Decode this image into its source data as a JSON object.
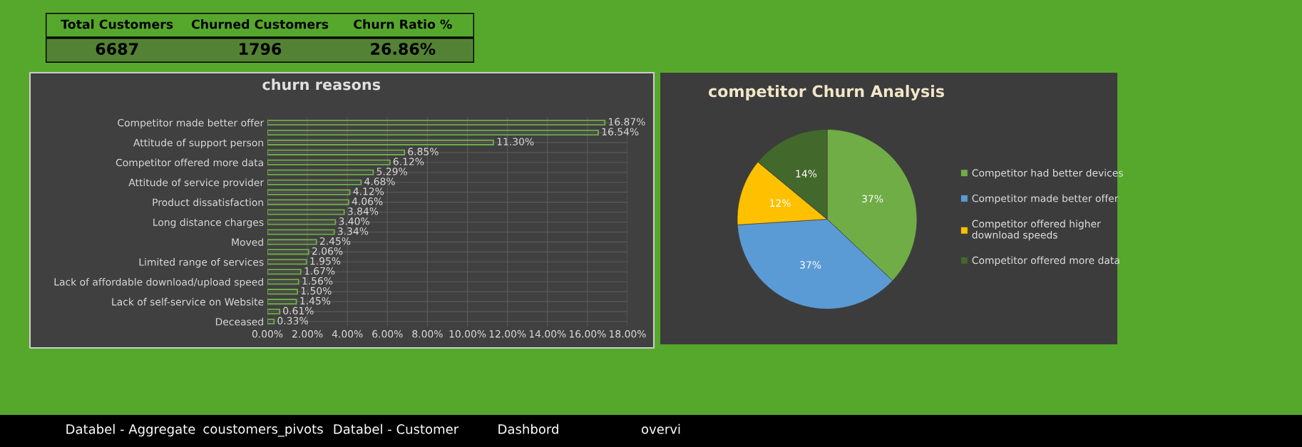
{
  "chart_data": [
    {
      "type": "other",
      "categories": [
        "Total Customers",
        "Churned Customers",
        "Churn Ratio %"
      ],
      "value_labels": [
        "6687",
        "1796",
        "26.86%"
      ]
    },
    {
      "type": "bar",
      "title": "churn reasons",
      "orientation": "horizontal",
      "categories": [
        "Competitor made better offer",
        null,
        "Attitude of support person",
        null,
        "Competitor offered more data",
        null,
        "Attitude of service provider",
        null,
        "Product dissatisfaction",
        null,
        "Long distance charges",
        null,
        "Moved",
        null,
        "Limited range of services",
        null,
        "Lack of affordable download/upload speed",
        null,
        "Lack of self-service on Website",
        null,
        "Deceased"
      ],
      "values": [
        16.87,
        16.54,
        11.3,
        6.85,
        6.12,
        5.29,
        4.68,
        4.12,
        4.06,
        3.84,
        3.4,
        3.34,
        2.45,
        2.06,
        1.95,
        1.67,
        1.56,
        1.5,
        1.45,
        0.61,
        0.33
      ],
      "value_labels": [
        "16.87%",
        "16.54%",
        "11.30%",
        "6.85%",
        "6.12%",
        "5.29%",
        "4.68%",
        "4.12%",
        "4.06%",
        "3.84%",
        "3.40%",
        "3.34%",
        "2.45%",
        "2.06%",
        "1.95%",
        "1.67%",
        "1.56%",
        "1.50%",
        "1.45%",
        "0.61%",
        "0.33%"
      ],
      "color": "#70ad47",
      "xlim": [
        0,
        18
      ],
      "xticks": [
        {
          "value": 0,
          "label": "0.00%"
        },
        {
          "value": 2,
          "label": "2.00%"
        },
        {
          "value": 4,
          "label": "4.00%"
        },
        {
          "value": 6,
          "label": "6.00%"
        },
        {
          "value": 8,
          "label": "8.00%"
        },
        {
          "value": 10,
          "label": "10.00%"
        },
        {
          "value": 12,
          "label": "12.00%"
        },
        {
          "value": 14,
          "label": "14.00%"
        },
        {
          "value": 16,
          "label": "16.00%"
        },
        {
          "value": 18,
          "label": "18.00%"
        }
      ],
      "grid": true
    },
    {
      "type": "pie",
      "title": "competitor Churn Analysis",
      "categories": [
        "Competitor had better devices",
        "Competitor made better offer",
        "Competitor offered higher download speeds",
        "Competitor offered more data"
      ],
      "values": [
        37,
        37,
        12,
        14
      ],
      "value_labels": [
        "37%",
        "37%",
        "12%",
        "14%"
      ],
      "colors": [
        "#70ad47",
        "#5b9bd5",
        "#ffc000",
        "#43682b"
      ],
      "legend": "right"
    },
    {
      "type": "other",
      "categories": [
        "Databel - Aggregate",
        "coustomers_pivots",
        "Databel - Customer",
        "Dashbord",
        "overvi"
      ]
    }
  ]
}
